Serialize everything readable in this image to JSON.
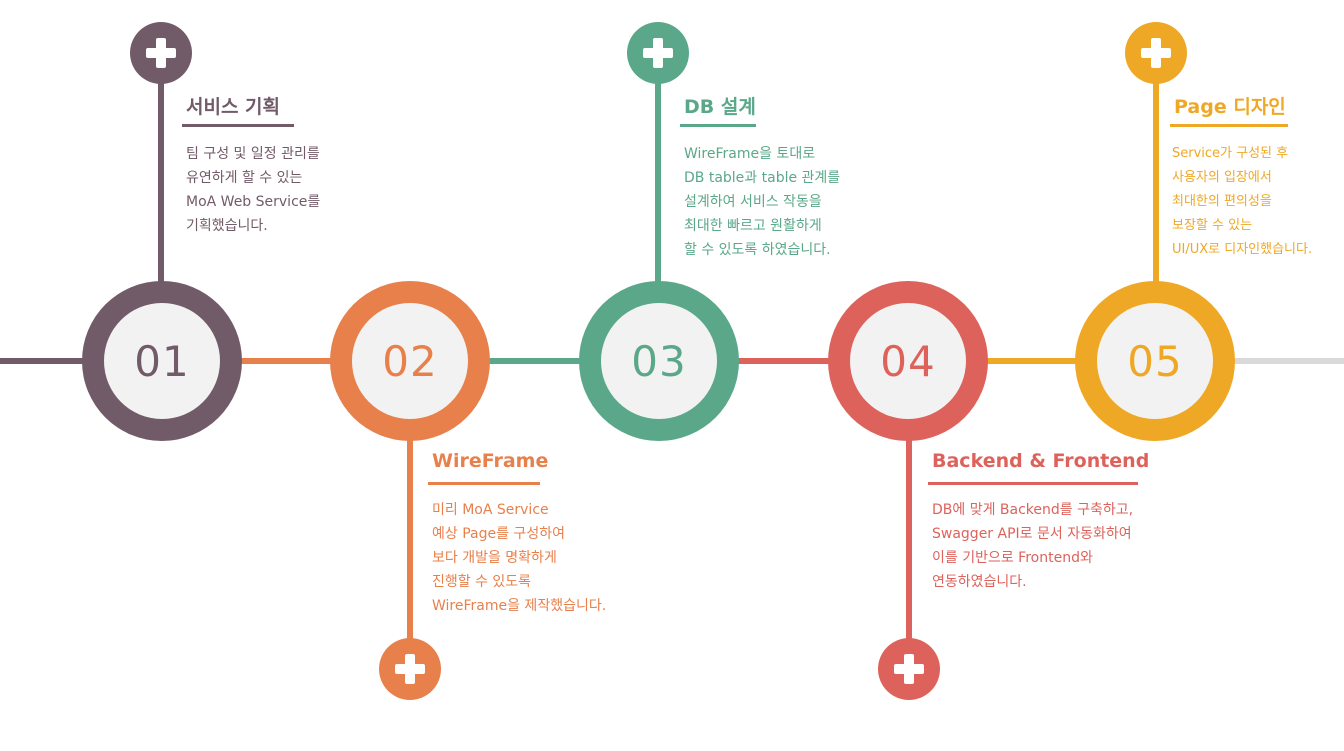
{
  "colors": {
    "step1": "#725b68",
    "step2": "#e8804c",
    "step3": "#5aa889",
    "step4": "#de625c",
    "step5": "#efa825",
    "track_end": "#d9d9d9",
    "inner": "#f2f2f2"
  },
  "icons": {
    "plus": "plus-icon"
  },
  "steps": [
    {
      "number": "01",
      "title": "서비스 기획",
      "lines": [
        "팀 구성 및 일정 관리를",
        "유연하게  할 수 있는",
        "MoA Web Service를",
        "기획했습니다."
      ]
    },
    {
      "number": "02",
      "title": "WireFrame",
      "lines": [
        "미리 MoA Service",
        "예상 Page를 구성하여",
        "보다 개발을 명확하게",
        "진행할 수 있도록",
        "WireFrame을 제작했습니다."
      ]
    },
    {
      "number": "03",
      "title": "DB 설계",
      "lines": [
        "WireFrame을 토대로",
        "DB table과  table 관계를",
        "설계하여 서비스 작동을",
        "최대한 빠르고 원활하게",
        "할 수 있도록 하였습니다."
      ]
    },
    {
      "number": "04",
      "title": "Backend & Frontend",
      "lines": [
        "DB에 맞게 Backend를 구축하고,",
        "Swagger API로 문서 자동화하여",
        "이를 기반으로 Frontend와",
        "연동하였습니다."
      ]
    },
    {
      "number": "05",
      "title": "Page 디자인",
      "lines": [
        "Service가 구성된 후",
        "사용자의 입장에서",
        "최대한의 편의성을",
        "보장할 수 있는",
        "UI/UX로 디자인했습니다."
      ]
    }
  ]
}
